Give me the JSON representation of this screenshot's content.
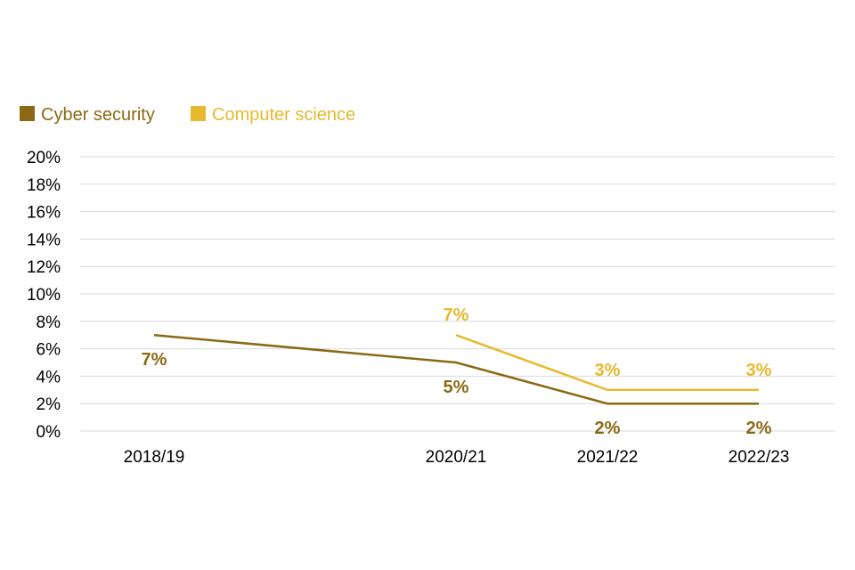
{
  "chart_data": {
    "type": "line",
    "title": "",
    "xlabel": "",
    "ylabel": "",
    "categories": [
      "2018/19",
      "2020/21",
      "2021/22",
      "2022/23"
    ],
    "category_x": [
      2018,
      2020,
      2021,
      2022
    ],
    "y_ticks": [
      "0%",
      "2%",
      "4%",
      "6%",
      "8%",
      "10%",
      "12%",
      "14%",
      "16%",
      "18%",
      "20%"
    ],
    "ylim": [
      0,
      20
    ],
    "grid": true,
    "legend_position": "top-left",
    "series": [
      {
        "name": "Cyber security",
        "color": "#8B6914",
        "values": [
          7,
          5,
          2,
          2
        ],
        "labels": [
          "7%",
          "5%",
          "2%",
          "2%"
        ],
        "label_position": "below"
      },
      {
        "name": "Computer science",
        "color": "#E6B92E",
        "values": [
          null,
          7,
          3,
          3
        ],
        "labels": [
          null,
          "7%",
          "3%",
          "3%"
        ],
        "label_position": "above"
      }
    ]
  }
}
